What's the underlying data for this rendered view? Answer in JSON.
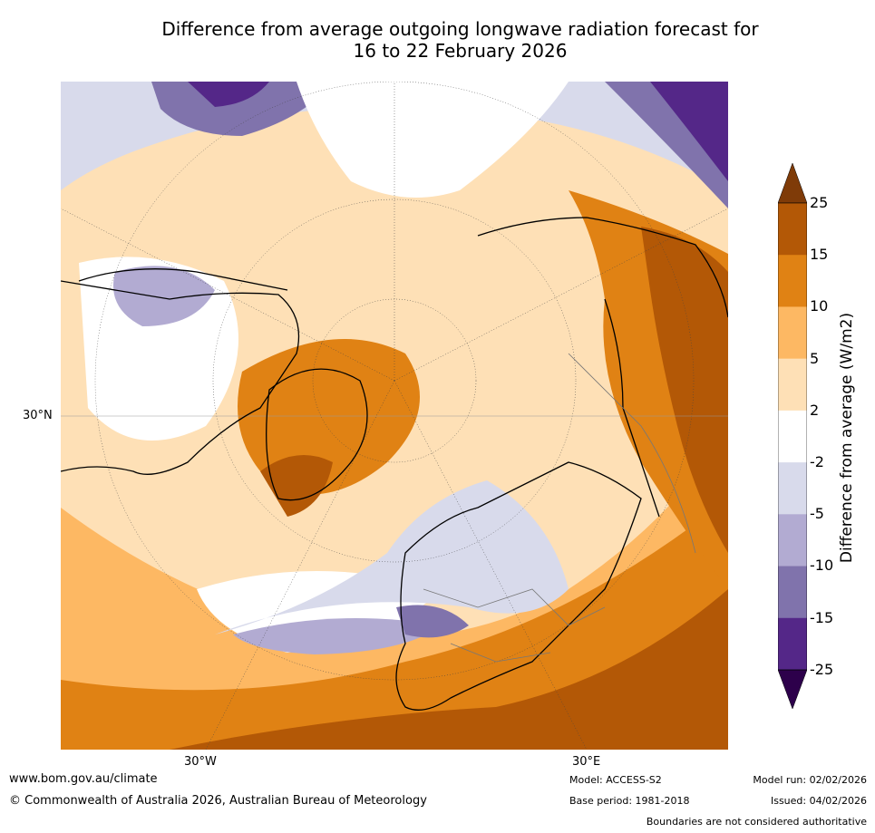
{
  "title": {
    "line1": "Difference from average outgoing longwave radiation forecast for",
    "line2": "16 to 22 February 2026"
  },
  "map": {
    "lat_label": "30°N",
    "lon_labels": [
      "30°W",
      "30°E"
    ]
  },
  "colorbar": {
    "label": "Difference from average (W/m2)",
    "ticks": [
      "25",
      "15",
      "10",
      "5",
      "2",
      "-2",
      "-5",
      "-10",
      "-15",
      "-25"
    ],
    "colors": {
      "over": "#7f3b08",
      "b15_25": "#b35806",
      "b10_15": "#e08214",
      "b5_10": "#fdb863",
      "b2_5": "#fee0b6",
      "neutral": "#ffffff",
      "m2_m5": "#d8daeb",
      "m5_m10": "#b2abd2",
      "m10_m15": "#8073ac",
      "m15_m25": "#542788",
      "under": "#2d004b"
    }
  },
  "footer": {
    "url": "www.bom.gov.au/climate",
    "copyright": "© Commonwealth of Australia 2026, Australian Bureau of Meteorology",
    "model": "Model: ACCESS-S2",
    "base_period": "Base period: 1981-2018",
    "model_run": "Model run: 02/02/2026",
    "issued": "Issued: 04/02/2026",
    "disclaimer": "Boundaries are not considered authoritative"
  }
}
